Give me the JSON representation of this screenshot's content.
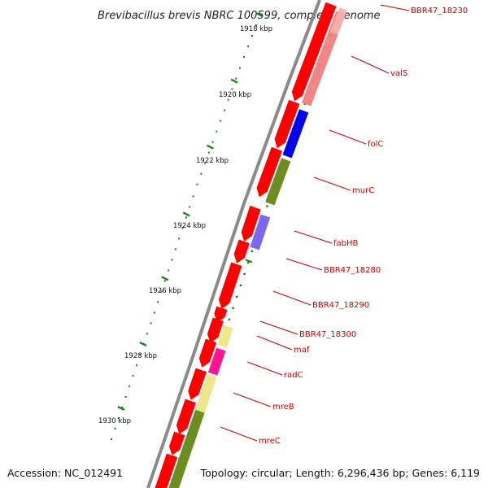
{
  "title": "Brevibacillus brevis NBRC 100599, complete genome",
  "footer": {
    "accession": "Accession: NC_012491",
    "summary": "Topology: circular; Length: 6,296,436 bp; Genes: 6,119"
  },
  "colors": {
    "backbone": "#8a8a8a",
    "tick": "#1a7a1a",
    "cds": "#ff0000",
    "label": "#cc0000",
    "valS": "#f08080",
    "folC": "#0000ee",
    "murC": "#6b8e23",
    "fabHB": "#7b68ee",
    "maf": "#f0e68c",
    "radC": "#ff1493",
    "mreB": "#f0e68c",
    "mreC": "#6b8e23"
  },
  "ticks": [
    "1918 kbp",
    "1920 kbp",
    "1922 kbp",
    "1924 kbp",
    "1926 kbp",
    "1928 kbp",
    "1930 kbp"
  ],
  "genes": [
    "BBR47_18230",
    "valS",
    "folC",
    "murC",
    "fabHB",
    "BBR47_18280",
    "BBR47_18290",
    "BBR47_18300",
    "maf",
    "radC",
    "mreB",
    "mreC"
  ]
}
